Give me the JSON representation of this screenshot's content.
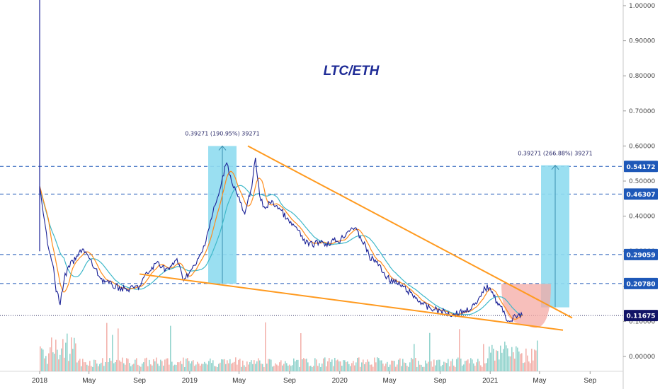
{
  "chart_data": {
    "type": "line",
    "title": "LTC/ETH",
    "xlabel": "",
    "ylabel": "",
    "x_tick_labels": [
      "2018",
      "May",
      "Sep",
      "2019",
      "May",
      "Sep",
      "2020",
      "May",
      "Sep",
      "2021",
      "May",
      "Sep"
    ],
    "y_tick_labels": [
      "1.00000",
      "0.90000",
      "0.80000",
      "0.70000",
      "0.60000",
      "0.50000",
      "0.40000",
      "0.30000",
      "0.20000",
      "0.10000",
      "0.00000"
    ],
    "ylim": [
      -0.04,
      1.0
    ],
    "scale": "linear",
    "grid": false,
    "series": [
      {
        "values": [
          [
            "2018-01-01",
            0.48
          ],
          [
            "2018-01-10",
            0.4
          ],
          [
            "2018-01-20",
            0.33
          ],
          [
            "2018-02-01",
            0.27
          ],
          [
            "2018-02-10",
            0.19
          ],
          [
            "2018-02-20",
            0.15
          ],
          [
            "2018-03-01",
            0.22
          ],
          [
            "2018-03-15",
            0.26
          ],
          [
            "2018-04-01",
            0.28
          ],
          [
            "2018-04-15",
            0.31
          ],
          [
            "2018-05-01",
            0.28
          ],
          [
            "2018-05-15",
            0.25
          ],
          [
            "2018-06-01",
            0.22
          ],
          [
            "2018-07-01",
            0.2
          ],
          [
            "2018-08-01",
            0.19
          ],
          [
            "2018-09-01",
            0.2
          ],
          [
            "2018-09-15",
            0.23
          ],
          [
            "2018-10-01",
            0.25
          ],
          [
            "2018-10-15",
            0.27
          ],
          [
            "2018-11-01",
            0.25
          ],
          [
            "2018-11-15",
            0.25
          ],
          [
            "2018-12-01",
            0.28
          ],
          [
            "2018-12-15",
            0.22
          ],
          [
            "2019-01-01",
            0.24
          ],
          [
            "2019-01-15",
            0.26
          ],
          [
            "2019-02-01",
            0.3
          ],
          [
            "2019-02-15",
            0.36
          ],
          [
            "2019-03-01",
            0.42
          ],
          [
            "2019-03-15",
            0.47
          ],
          [
            "2019-04-01",
            0.56
          ],
          [
            "2019-04-10",
            0.51
          ],
          [
            "2019-04-20",
            0.48
          ],
          [
            "2019-05-01",
            0.45
          ],
          [
            "2019-05-15",
            0.4
          ],
          [
            "2019-06-01",
            0.49
          ],
          [
            "2019-06-10",
            0.56
          ],
          [
            "2019-06-20",
            0.46
          ],
          [
            "2019-07-01",
            0.42
          ],
          [
            "2019-07-15",
            0.44
          ],
          [
            "2019-08-01",
            0.43
          ],
          [
            "2019-08-15",
            0.41
          ],
          [
            "2019-09-01",
            0.38
          ],
          [
            "2019-09-15",
            0.37
          ],
          [
            "2019-10-01",
            0.34
          ],
          [
            "2019-10-15",
            0.32
          ],
          [
            "2019-11-01",
            0.32
          ],
          [
            "2019-11-15",
            0.33
          ],
          [
            "2019-12-01",
            0.32
          ],
          [
            "2019-12-15",
            0.33
          ],
          [
            "2020-01-01",
            0.33
          ],
          [
            "2020-01-15",
            0.35
          ],
          [
            "2020-02-01",
            0.37
          ],
          [
            "2020-02-15",
            0.35
          ],
          [
            "2020-03-01",
            0.32
          ],
          [
            "2020-03-15",
            0.28
          ],
          [
            "2020-04-01",
            0.27
          ],
          [
            "2020-04-15",
            0.24
          ],
          [
            "2020-05-01",
            0.22
          ],
          [
            "2020-06-01",
            0.2
          ],
          [
            "2020-07-01",
            0.17
          ],
          [
            "2020-08-01",
            0.14
          ],
          [
            "2020-09-01",
            0.13
          ],
          [
            "2020-10-01",
            0.12
          ],
          [
            "2020-11-01",
            0.13
          ],
          [
            "2020-12-01",
            0.15
          ],
          [
            "2020-12-15",
            0.19
          ],
          [
            "2021-01-01",
            0.2
          ],
          [
            "2021-01-15",
            0.16
          ],
          [
            "2021-02-01",
            0.13
          ],
          [
            "2021-02-15",
            0.1
          ],
          [
            "2021-03-01",
            0.11
          ],
          [
            "2021-03-15",
            0.12
          ],
          [
            "2021-03-20",
            0.11675
          ]
        ]
      }
    ],
    "price_levels": [
      "0.54172",
      "0.46307",
      "0.29059",
      "0.20780"
    ],
    "last_price": "0.11675",
    "measurements": [
      {
        "label": "0.39271 (190.95%) 39271"
      },
      {
        "label": "0.39271 (266.88%) 39271"
      }
    ],
    "colors": {
      "price_line": "#1a2196",
      "ma_fast": "#ff8c1a",
      "ma_slow": "#3fb8c9",
      "trendline": "#ff9a1f",
      "level_line": "#1e58b8",
      "level_label_bg": "#1e58b8",
      "last_label_bg": "#121466",
      "measure_box": "#8fdcef",
      "cup_fill": "#f4a9a4",
      "volume_up": "#72c6bd",
      "volume_down": "#ef9a92",
      "title": "#1e2b96"
    }
  }
}
